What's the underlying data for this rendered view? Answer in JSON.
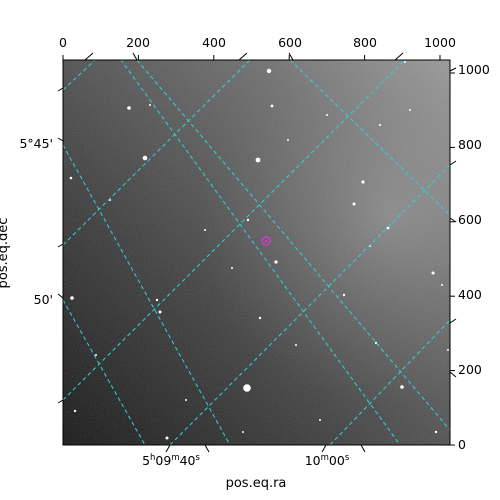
{
  "plot": {
    "xlabel": "pos.eq.ra",
    "ylabel": "pos.eq.dec",
    "top_ticks": [
      "0",
      "200",
      "400",
      "600",
      "800",
      "1000"
    ],
    "right_ticks": [
      "0",
      "200",
      "400",
      "600",
      "800",
      "1000"
    ],
    "ra_ticks": [
      {
        "hms": "5",
        "h": "h",
        "m_val": "09",
        "m": "m",
        "s_val": "40",
        "s": "s"
      },
      {
        "hms": "",
        "h": "",
        "m_val": "10",
        "m": "m",
        "s_val": "00",
        "s": "s"
      }
    ],
    "dec_ticks": [
      "5°45'",
      "50'"
    ],
    "grid_color": "#2fd5d5",
    "marker_color": "#d63ad6"
  }
}
